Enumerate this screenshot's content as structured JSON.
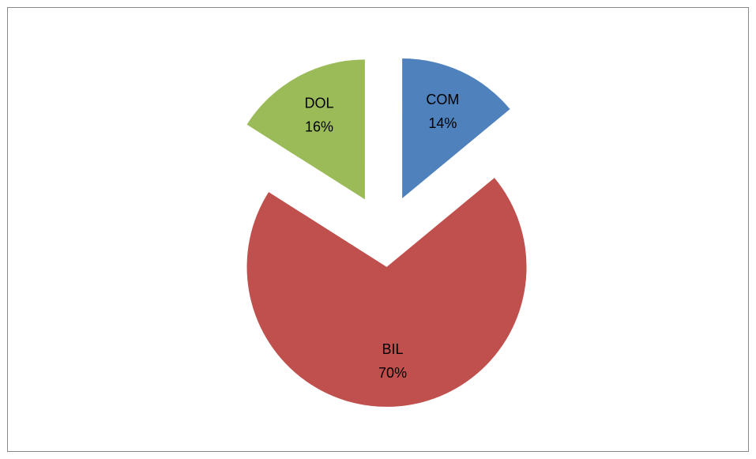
{
  "chart_data": {
    "type": "pie",
    "categories": [
      "COM",
      "BIL",
      "DOL"
    ],
    "values": [
      14,
      70,
      16
    ],
    "value_labels": [
      "14%",
      "70%",
      "16%"
    ],
    "colors": [
      "#4f81bd",
      "#c0504d",
      "#9bbb59"
    ]
  }
}
